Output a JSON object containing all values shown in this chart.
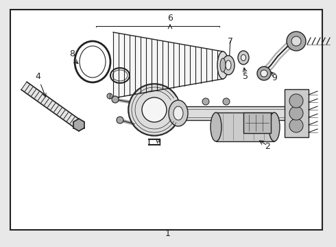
{
  "bg_color": "#e8e8e8",
  "box_color": "#ffffff",
  "line_color": "#222222",
  "gray_light": "#cccccc",
  "gray_mid": "#aaaaaa",
  "gray_dark": "#888888"
}
